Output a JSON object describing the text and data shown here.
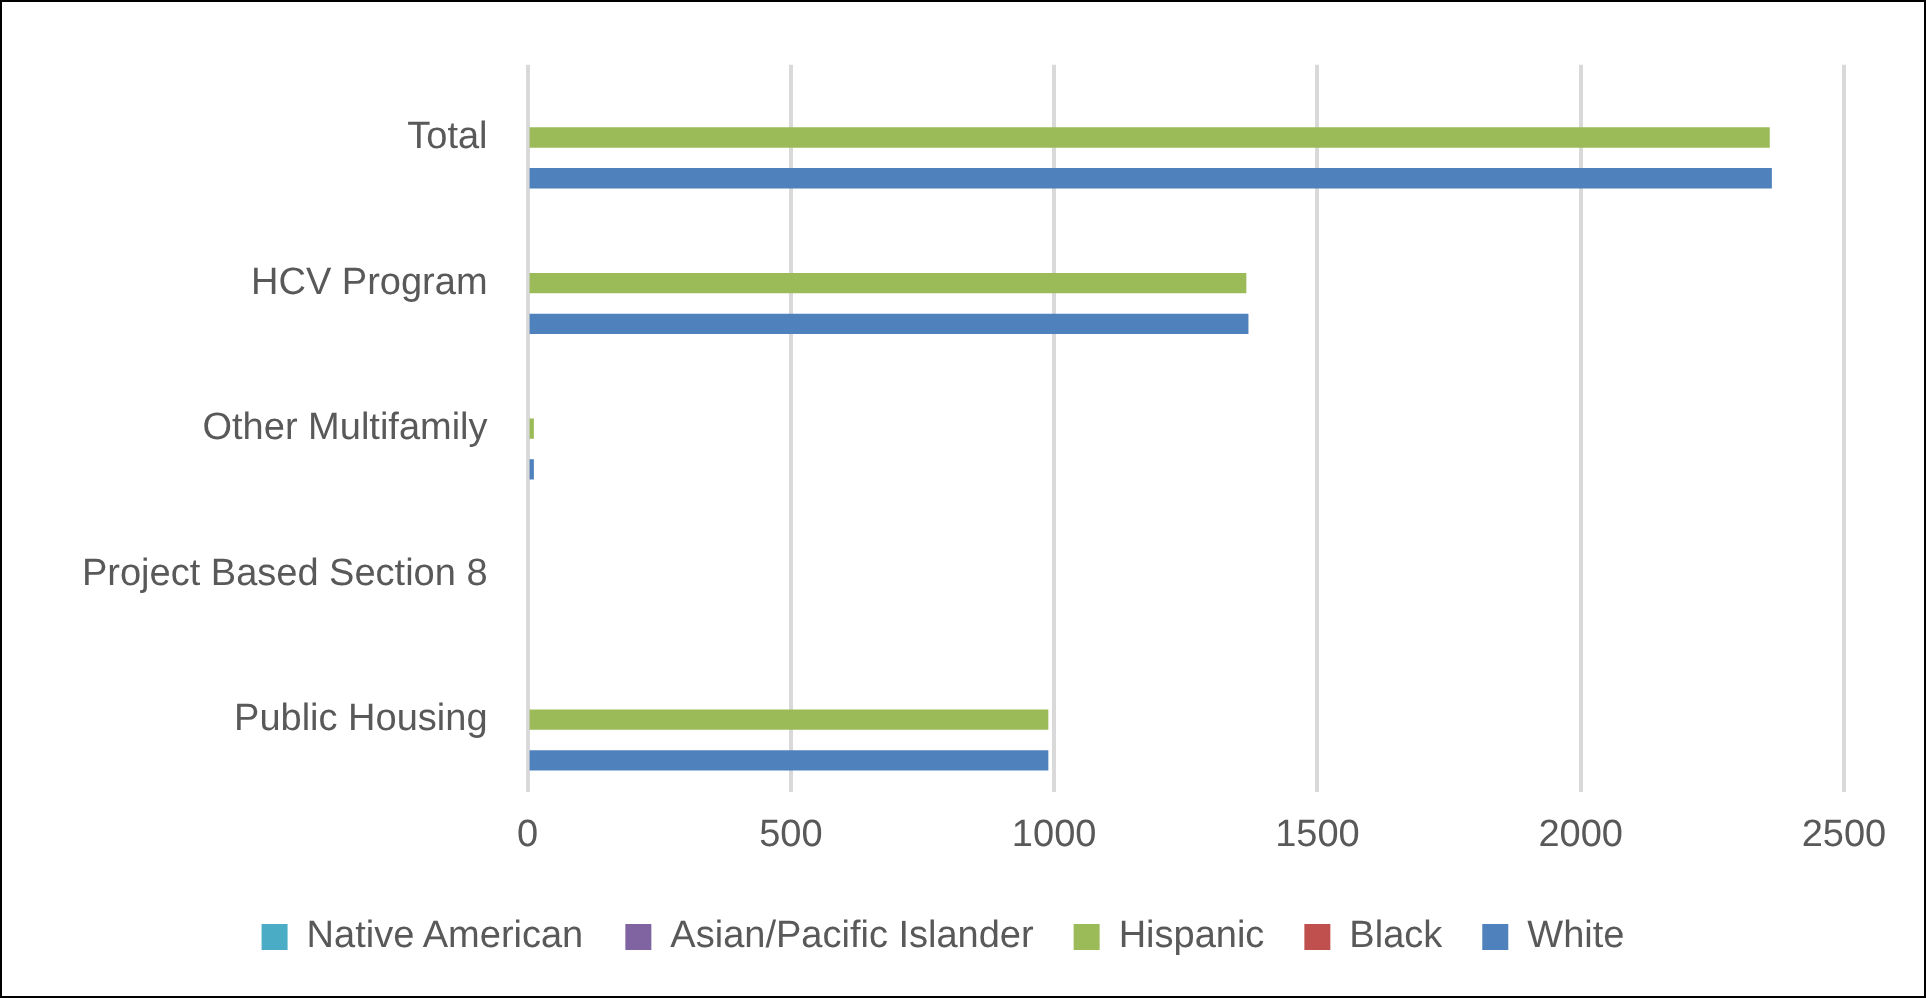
{
  "chart_data": {
    "type": "bar",
    "orientation": "horizontal",
    "categories": [
      "Total",
      "HCV Program",
      "Other Multifamily",
      "Project Based Section 8",
      "Public Housing"
    ],
    "series": [
      {
        "name": "Native American",
        "color": "#4bacc6",
        "values": [
          0,
          0,
          0,
          0,
          0
        ]
      },
      {
        "name": "Asian/Pacific Islander",
        "color": "#8064a2",
        "values": [
          0,
          0,
          0,
          0,
          0
        ]
      },
      {
        "name": "Hispanic",
        "color": "#9bbb59",
        "values": [
          2359,
          1365,
          12,
          0,
          989
        ]
      },
      {
        "name": "Black",
        "color": "#c0504d",
        "values": [
          0,
          0,
          0,
          0,
          0
        ]
      },
      {
        "name": "White",
        "color": "#4f81bd",
        "values": [
          2363,
          1369,
          12,
          0,
          989
        ]
      }
    ],
    "xlim": [
      0,
      2500
    ],
    "xticks": [
      0,
      500,
      1000,
      1500,
      2000,
      2500
    ],
    "grid": "x",
    "legend": "bottom"
  }
}
